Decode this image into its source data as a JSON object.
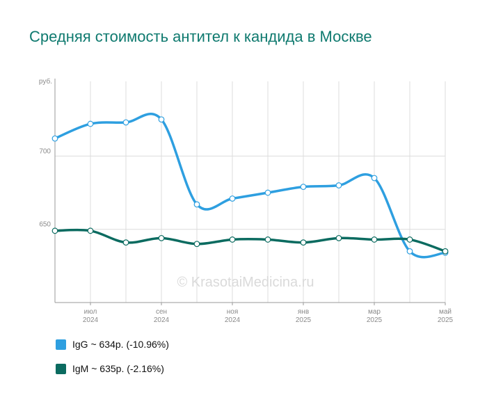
{
  "chart_data": {
    "type": "line",
    "title": "Средняя стоимость антител к кандида в Москве",
    "y_unit": "руб.",
    "x": [
      "2024-06",
      "2024-07",
      "2024-08",
      "2024-09",
      "2024-10",
      "2024-11",
      "2024-12",
      "2025-01",
      "2025-02",
      "2025-03",
      "2025-04",
      "2025-05"
    ],
    "x_tick_labels": [
      {
        "index": 1,
        "month": "июл",
        "year": "2024"
      },
      {
        "index": 3,
        "month": "сен",
        "year": "2024"
      },
      {
        "index": 5,
        "month": "ноя",
        "year": "2024"
      },
      {
        "index": 7,
        "month": "янв",
        "year": "2025"
      },
      {
        "index": 9,
        "month": "мар",
        "year": "2025"
      },
      {
        "index": 11,
        "month": "май",
        "year": "2025"
      }
    ],
    "y_ticks": [
      650,
      700
    ],
    "ylim": [
      600,
      751
    ],
    "grid": true,
    "legend_position": "bottom-left",
    "series": [
      {
        "name": "IgG",
        "color": "#2e9fe0",
        "values": [
          712,
          722,
          723,
          725,
          667,
          671,
          675,
          679,
          680,
          685,
          635,
          634
        ]
      },
      {
        "name": "IgM",
        "color": "#0b6b60",
        "values": [
          649,
          649,
          641,
          644,
          640,
          643,
          643,
          641,
          644,
          643,
          643,
          635
        ]
      }
    ]
  },
  "legend": [
    {
      "text": "IgG ~ 634р. (-10.96%)",
      "color": "#2e9fe0"
    },
    {
      "text": "IgM ~ 635р. (-2.16%)",
      "color": "#0b6b60"
    }
  ],
  "watermark": "© KrasotaiMedicina.ru"
}
